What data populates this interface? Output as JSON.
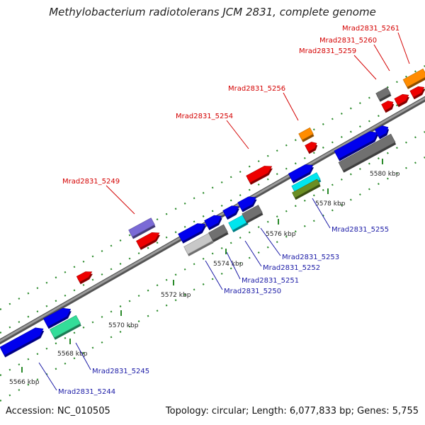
{
  "title": "Methylobacterium radiotolerans JCM 2831, complete genome",
  "footer": {
    "accession": "Accession: NC_010505",
    "summary": "Topology: circular; Length: 6,077,833 bp; Genes: 5,755"
  },
  "colors": {
    "backbone": "#8a8a8a",
    "tick": "#2a8a2a",
    "label_top": "#d40000",
    "label_bottom": "#1a1aa6",
    "blue": "#0000ee",
    "red": "#ee0000",
    "gray": "#707070",
    "light_gray": "#c8c8c8",
    "orange": "#ff8c00",
    "purple": "#7a6ad6",
    "cyan": "#00e5ee",
    "olive": "#6b8e23",
    "mint": "#33dd99"
  },
  "scale": {
    "ticks": [
      "5566 kbp",
      "5568 kbp",
      "5570 kbp",
      "5572 kbp",
      "5574 kbp",
      "5576 kbp",
      "5578 kbp",
      "5580 kbp"
    ]
  },
  "labels_top": [
    "Mrad2831_5249",
    "Mrad2831_5254",
    "Mrad2831_5256",
    "Mrad2831_5259",
    "Mrad2831_5260",
    "Mrad2831_5261"
  ],
  "labels_bottom": [
    "Mrad2831_5244",
    "Mrad2831_5245",
    "Mrad2831_5250",
    "Mrad2831_5251",
    "Mrad2831_5252",
    "Mrad2831_5253",
    "Mrad2831_5255"
  ]
}
